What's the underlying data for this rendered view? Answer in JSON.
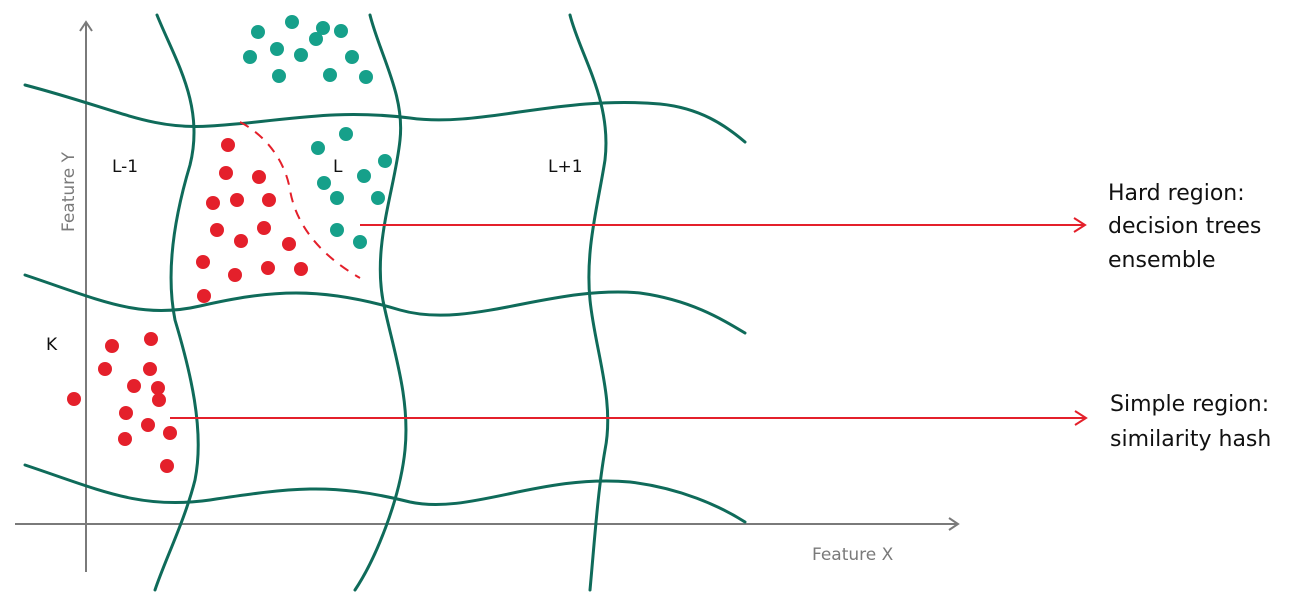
{
  "colors": {
    "grid": "#0f6b5a",
    "axis": "#7a7a7a",
    "red": "#e4202b",
    "teal": "#16a08a",
    "text": "#111111"
  },
  "axes": {
    "x_label": "Feature X",
    "y_label": "Feature Y"
  },
  "cells": {
    "left": "L-1",
    "center": "L",
    "right": "L+1",
    "lower_left": "K"
  },
  "annotations": {
    "hard_line1": "Hard region:",
    "hard_line2": "decision trees",
    "hard_line3": "ensemble",
    "simple_line1": "Simple region:",
    "simple_line2": "similarity hash"
  }
}
